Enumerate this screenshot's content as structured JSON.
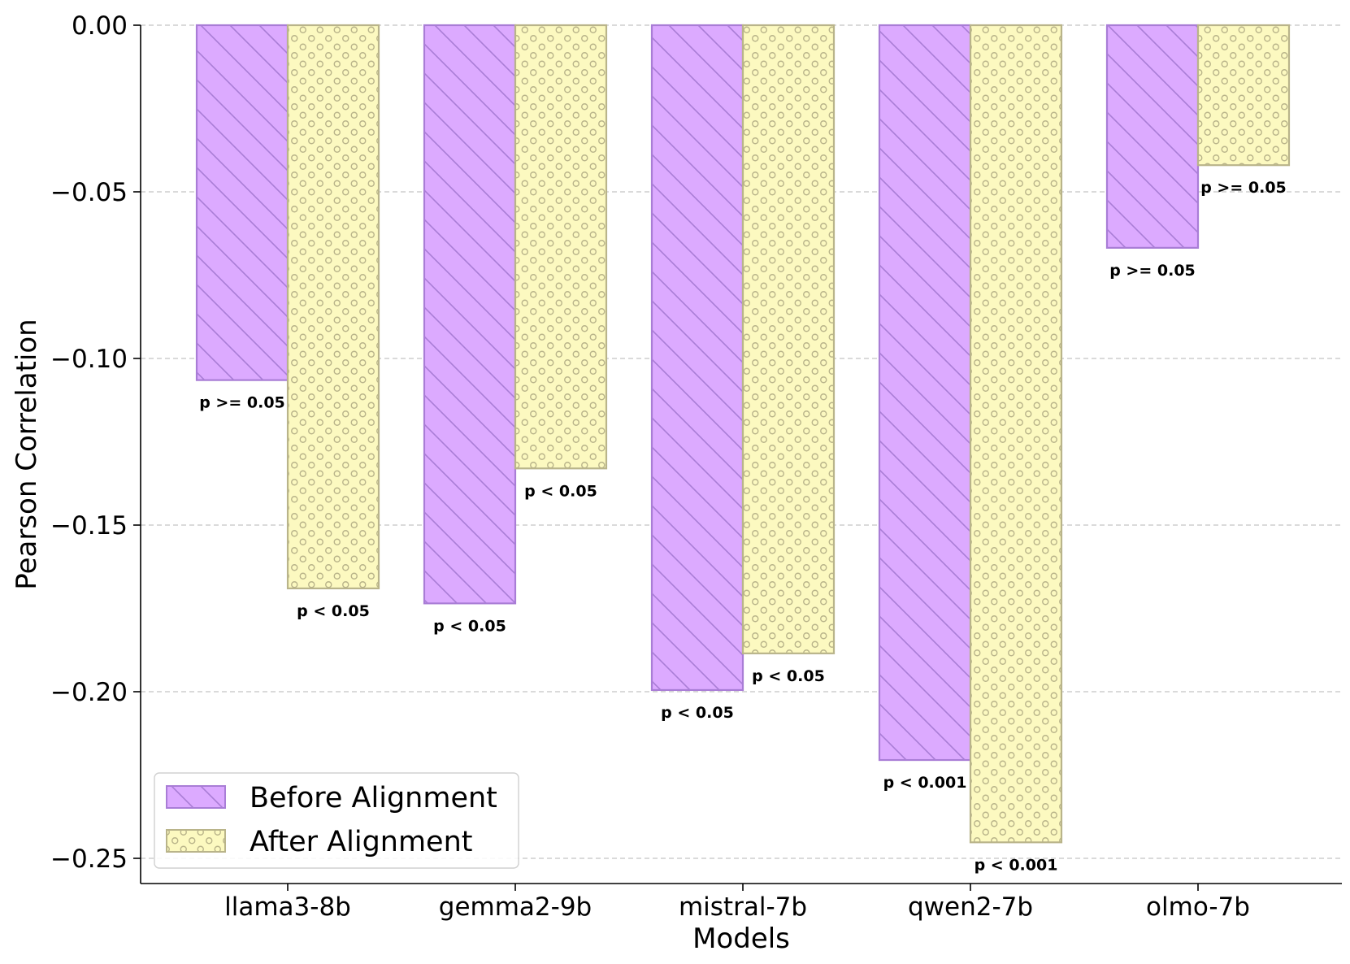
{
  "chart_data": {
    "type": "bar",
    "title": "",
    "xlabel": "Models",
    "ylabel": "Pearson Correlation",
    "ylim": [
      -0.257,
      0.0
    ],
    "yticks": [
      0.0,
      -0.05,
      -0.1,
      -0.15,
      -0.2,
      -0.25
    ],
    "ytick_labels": [
      "0.00",
      "−0.05",
      "−0.10",
      "−0.15",
      "−0.20",
      "−0.25"
    ],
    "grid": "horizontal dashed",
    "legend_position": "bottom-left",
    "categories": [
      "llama3-8b",
      "gemma2-9b",
      "mistral-7b",
      "qwen2-7b",
      "olmo-7b"
    ],
    "series": [
      {
        "name": "Before Alignment",
        "color": "#dcaaff",
        "edge_color": "#a97dd6",
        "hatch": "diagonal",
        "values": [
          -0.1065,
          -0.1735,
          -0.1995,
          -0.2205,
          -0.0668
        ],
        "p_labels": [
          "p >= 0.05",
          "p < 0.05",
          "p < 0.05",
          "p < 0.001",
          "p >= 0.05"
        ]
      },
      {
        "name": "After Alignment",
        "color": "#fcf9c0",
        "edge_color": "#b9b48a",
        "hatch": "circles",
        "values": [
          -0.169,
          -0.133,
          -0.1885,
          -0.2452,
          -0.042
        ],
        "p_labels": [
          "p < 0.05",
          "p < 0.05",
          "p < 0.05",
          "p < 0.001",
          "p >= 0.05"
        ]
      }
    ]
  }
}
